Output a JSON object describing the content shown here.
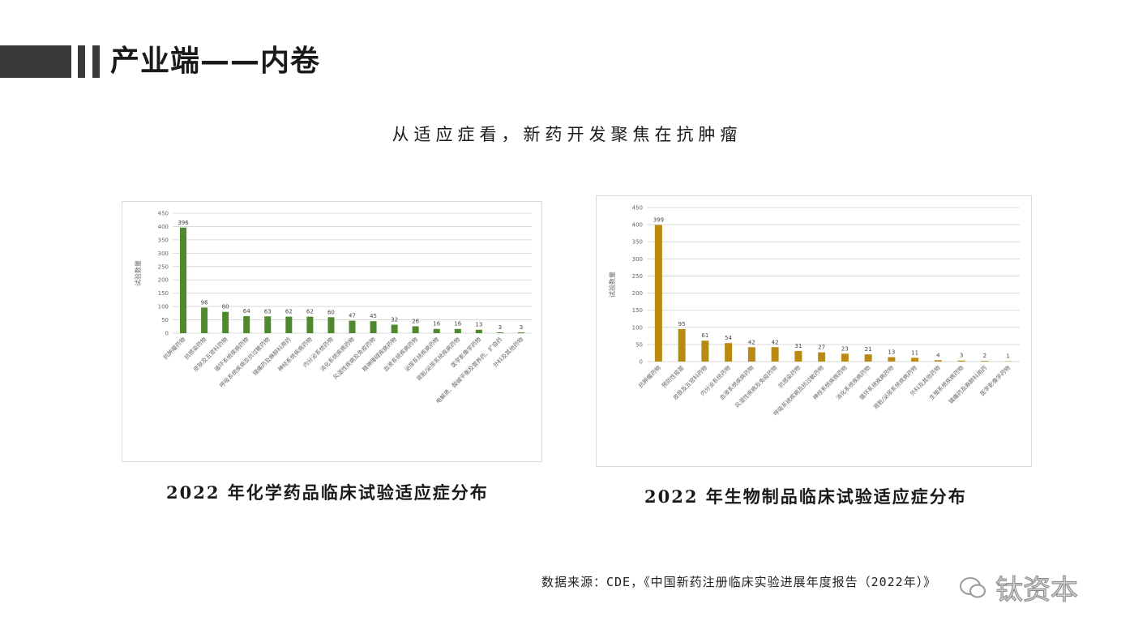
{
  "page": {
    "title": "产业端——内卷",
    "subtitle": "从适应症看，新药开发聚焦在抗肿瘤",
    "source": "数据来源：CDE，《中国新药注册临床实验进展年度报告（2022年）》",
    "watermark": "钛资本"
  },
  "chart_data": [
    {
      "type": "bar",
      "caption": "2022 年化学药品临床试验适应症分布",
      "ylabel": "试验数量",
      "ylim": [
        0,
        450
      ],
      "yticks": [
        "0",
        "50",
        "100",
        "150",
        "200",
        "250",
        "300",
        "350",
        "400",
        "450"
      ],
      "color": "#4e8a2c",
      "categories": [
        "抗肿瘤药物",
        "抗感染药物",
        "皮肤及五官科药物",
        "循环系统疾病药物",
        "呼吸系统疾病及抗过敏药物",
        "镇痛药及麻醉科用药",
        "神经系统疾病药物",
        "内分泌系统药物",
        "消化系统疾病药物",
        "风湿性疾病及免疫药物",
        "精神障碍疾病药物",
        "血液系统疾病药物",
        "泌尿系统疾病药物",
        "肾脏/泌尿系统疾病药物",
        "医学影像学药物",
        "电解质、酸碱平衡及营养药、扩容药",
        "外科及其他药物"
      ],
      "values": [
        396,
        96,
        80,
        64,
        63,
        62,
        62,
        60,
        47,
        45,
        32,
        26,
        16,
        16,
        13,
        3,
        3
      ],
      "grid": true
    },
    {
      "type": "bar",
      "caption": "2022 年生物制品临床试验适应症分布",
      "ylabel": "试验数量",
      "ylim": [
        0,
        450
      ],
      "yticks": [
        "0",
        "50",
        "100",
        "150",
        "200",
        "250",
        "300",
        "350",
        "400",
        "450"
      ],
      "color": "#b98a12",
      "categories": [
        "抗肿瘤药物",
        "预防性疫苗",
        "皮肤及五官科药物",
        "内分泌系统药物",
        "血液系统疾病药物",
        "风湿性疾病及免疫药物",
        "抗感染药物",
        "呼吸系统疾病及抗过敏药物",
        "神经系统疾病药物",
        "消化系统疾病药物",
        "循环系统疾病药物",
        "肾脏/泌尿系统疾病药物",
        "外科及其他药物",
        "生殖系统疾病药物",
        "镇痛药及麻醉科用药",
        "医学影像学药物"
      ],
      "values": [
        399,
        95,
        61,
        54,
        42,
        42,
        31,
        27,
        23,
        21,
        13,
        11,
        4,
        3,
        2,
        1
      ],
      "grid": true
    }
  ]
}
